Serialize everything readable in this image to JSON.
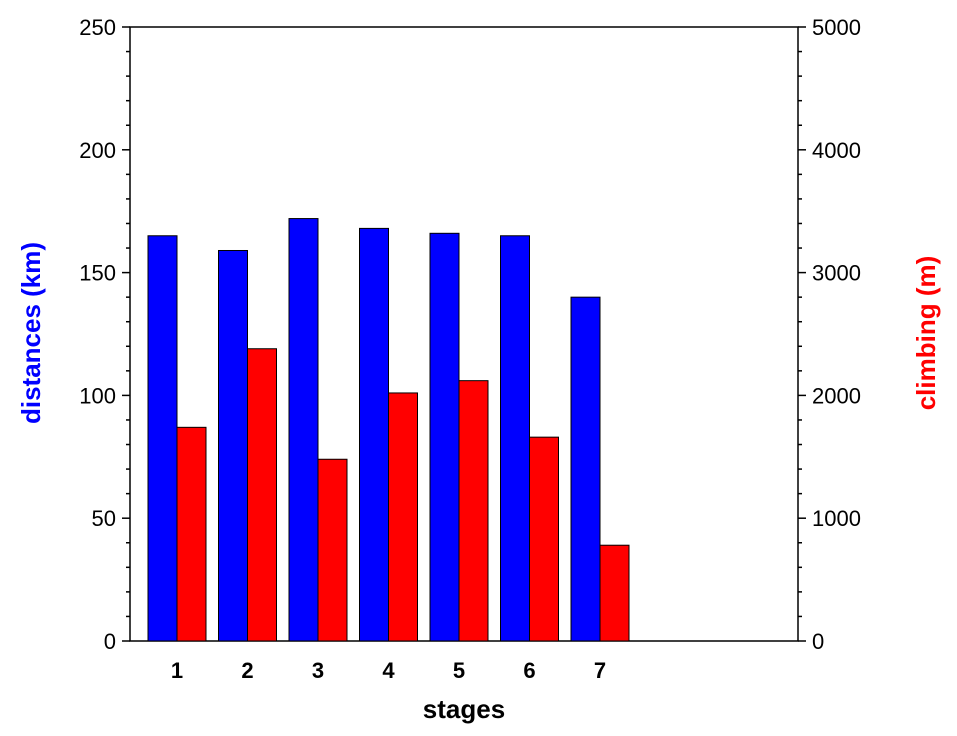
{
  "chart_data": {
    "type": "bar",
    "categories": [
      "1",
      "2",
      "3",
      "4",
      "5",
      "6",
      "7"
    ],
    "xlabel": "stages",
    "ylabel_left": "distances (km)",
    "ylabel_right": "climbing (m)",
    "ylim_left": [
      0,
      250
    ],
    "ylim_right": [
      0,
      5000
    ],
    "yticks_left": [
      "0",
      "50",
      "100",
      "150",
      "200",
      "250"
    ],
    "yticks_right": [
      "0",
      "1000",
      "2000",
      "3000",
      "4000",
      "5000"
    ],
    "grid": false,
    "series": [
      {
        "name": "distances (km)",
        "axis": "left",
        "color": "#0000ff",
        "values": [
          165,
          159,
          172,
          168,
          166,
          165,
          140
        ]
      },
      {
        "name": "climbing (m)",
        "axis": "right",
        "color": "#ff0000",
        "values": [
          1740,
          2380,
          1480,
          2020,
          2120,
          1660,
          780
        ]
      }
    ]
  }
}
